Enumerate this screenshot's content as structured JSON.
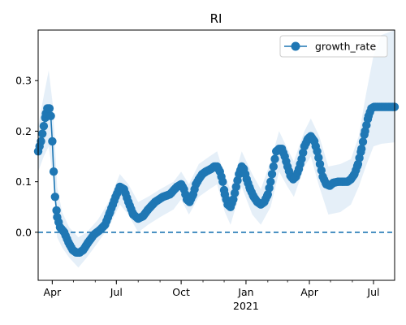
{
  "chart_data": {
    "type": "line",
    "title": "RI",
    "xlabel": "",
    "ylabel": "",
    "x_range": [
      "2020-03-12",
      "2021-07-31"
    ],
    "ylim": [
      -0.095,
      0.4
    ],
    "x_major_ticks": [
      {
        "date": "2020-04-01",
        "label": "Apr"
      },
      {
        "date": "2020-07-01",
        "label": "Jul"
      },
      {
        "date": "2020-10-01",
        "label": "Oct"
      },
      {
        "date": "2021-01-01",
        "label": "Jan"
      },
      {
        "date": "2021-04-01",
        "label": "Apr"
      },
      {
        "date": "2021-07-01",
        "label": "Jul"
      }
    ],
    "x_year_label": "2021",
    "y_ticks": [
      0.0,
      0.1,
      0.2,
      0.3
    ],
    "y_tick_labels": [
      "0.0",
      "0.1",
      "0.2",
      "0.3"
    ],
    "reference_line": {
      "y": 0.0,
      "style": "dashed"
    },
    "legend": {
      "position": "top-right",
      "entries": [
        "growth_rate"
      ]
    },
    "grid": false,
    "colors": {
      "line": "#1f77b4",
      "band": "#dce9f5",
      "axes": "#000000"
    },
    "series": [
      {
        "name": "growth_rate",
        "marker": "circle",
        "points": [
          [
            "2020-03-12",
            0.16
          ],
          [
            "2020-03-16",
            0.18
          ],
          [
            "2020-03-20",
            0.21
          ],
          [
            "2020-03-23",
            0.235
          ],
          [
            "2020-03-25",
            0.245
          ],
          [
            "2020-03-28",
            0.245
          ],
          [
            "2020-03-30",
            0.23
          ],
          [
            "2020-04-01",
            0.18
          ],
          [
            "2020-04-03",
            0.12
          ],
          [
            "2020-04-05",
            0.07
          ],
          [
            "2020-04-08",
            0.03
          ],
          [
            "2020-04-12",
            0.01
          ],
          [
            "2020-04-18",
            0.0
          ],
          [
            "2020-04-24",
            -0.02
          ],
          [
            "2020-04-30",
            -0.035
          ],
          [
            "2020-05-05",
            -0.04
          ],
          [
            "2020-05-10",
            -0.04
          ],
          [
            "2020-05-15",
            -0.035
          ],
          [
            "2020-05-22",
            -0.02
          ],
          [
            "2020-05-30",
            -0.005
          ],
          [
            "2020-06-08",
            0.005
          ],
          [
            "2020-06-15",
            0.015
          ],
          [
            "2020-06-22",
            0.04
          ],
          [
            "2020-06-30",
            0.07
          ],
          [
            "2020-07-06",
            0.09
          ],
          [
            "2020-07-12",
            0.085
          ],
          [
            "2020-07-18",
            0.06
          ],
          [
            "2020-07-25",
            0.035
          ],
          [
            "2020-08-01",
            0.027
          ],
          [
            "2020-08-08",
            0.032
          ],
          [
            "2020-08-15",
            0.045
          ],
          [
            "2020-08-25",
            0.06
          ],
          [
            "2020-09-05",
            0.07
          ],
          [
            "2020-09-15",
            0.075
          ],
          [
            "2020-09-25",
            0.09
          ],
          [
            "2020-10-01",
            0.095
          ],
          [
            "2020-10-05",
            0.085
          ],
          [
            "2020-10-09",
            0.065
          ],
          [
            "2020-10-13",
            0.06
          ],
          [
            "2020-10-18",
            0.075
          ],
          [
            "2020-10-22",
            0.095
          ],
          [
            "2020-10-26",
            0.105
          ],
          [
            "2020-10-31",
            0.115
          ],
          [
            "2020-11-05",
            0.12
          ],
          [
            "2020-11-12",
            0.125
          ],
          [
            "2020-11-17",
            0.13
          ],
          [
            "2020-11-21",
            0.13
          ],
          [
            "2020-11-25",
            0.12
          ],
          [
            "2020-11-29",
            0.1
          ],
          [
            "2020-12-02",
            0.075
          ],
          [
            "2020-12-06",
            0.055
          ],
          [
            "2020-12-10",
            0.05
          ],
          [
            "2020-12-14",
            0.065
          ],
          [
            "2020-12-18",
            0.09
          ],
          [
            "2020-12-22",
            0.115
          ],
          [
            "2020-12-26",
            0.13
          ],
          [
            "2020-12-29",
            0.125
          ],
          [
            "2021-01-02",
            0.105
          ],
          [
            "2021-01-07",
            0.085
          ],
          [
            "2021-01-12",
            0.07
          ],
          [
            "2021-01-17",
            0.06
          ],
          [
            "2021-01-22",
            0.055
          ],
          [
            "2021-01-27",
            0.06
          ],
          [
            "2021-02-01",
            0.075
          ],
          [
            "2021-02-05",
            0.1
          ],
          [
            "2021-02-09",
            0.13
          ],
          [
            "2021-02-13",
            0.16
          ],
          [
            "2021-02-17",
            0.165
          ],
          [
            "2021-02-21",
            0.165
          ],
          [
            "2021-02-25",
            0.15
          ],
          [
            "2021-03-01",
            0.13
          ],
          [
            "2021-03-05",
            0.112
          ],
          [
            "2021-03-09",
            0.105
          ],
          [
            "2021-03-13",
            0.11
          ],
          [
            "2021-03-17",
            0.125
          ],
          [
            "2021-03-21",
            0.145
          ],
          [
            "2021-03-25",
            0.17
          ],
          [
            "2021-03-30",
            0.185
          ],
          [
            "2021-04-03",
            0.19
          ],
          [
            "2021-04-08",
            0.18
          ],
          [
            "2021-04-12",
            0.16
          ],
          [
            "2021-04-16",
            0.135
          ],
          [
            "2021-04-20",
            0.11
          ],
          [
            "2021-04-25",
            0.095
          ],
          [
            "2021-04-30",
            0.092
          ],
          [
            "2021-05-05",
            0.098
          ],
          [
            "2021-05-12",
            0.1
          ],
          [
            "2021-05-19",
            0.1
          ],
          [
            "2021-05-25",
            0.1
          ],
          [
            "2021-05-30",
            0.105
          ],
          [
            "2021-06-04",
            0.115
          ],
          [
            "2021-06-09",
            0.135
          ],
          [
            "2021-06-14",
            0.165
          ],
          [
            "2021-06-19",
            0.2
          ],
          [
            "2021-06-24",
            0.23
          ],
          [
            "2021-06-28",
            0.245
          ],
          [
            "2021-07-02",
            0.248
          ],
          [
            "2021-07-10",
            0.248
          ],
          [
            "2021-07-20",
            0.248
          ],
          [
            "2021-07-31",
            0.248
          ]
        ],
        "band_upper": [
          [
            "2020-03-12",
            0.21
          ],
          [
            "2020-03-20",
            0.27
          ],
          [
            "2020-03-27",
            0.32
          ],
          [
            "2020-04-02",
            0.25
          ],
          [
            "2020-04-08",
            0.09
          ],
          [
            "2020-04-15",
            0.04
          ],
          [
            "2020-04-25",
            0.01
          ],
          [
            "2020-05-08",
            -0.01
          ],
          [
            "2020-05-20",
            0.0
          ],
          [
            "2020-06-05",
            0.025
          ],
          [
            "2020-06-20",
            0.06
          ],
          [
            "2020-07-06",
            0.115
          ],
          [
            "2020-07-18",
            0.095
          ],
          [
            "2020-08-01",
            0.06
          ],
          [
            "2020-08-15",
            0.07
          ],
          [
            "2020-09-01",
            0.085
          ],
          [
            "2020-09-20",
            0.1
          ],
          [
            "2020-10-01",
            0.12
          ],
          [
            "2020-10-12",
            0.095
          ],
          [
            "2020-10-26",
            0.135
          ],
          [
            "2020-11-10",
            0.15
          ],
          [
            "2020-11-21",
            0.16
          ],
          [
            "2020-12-02",
            0.11
          ],
          [
            "2020-12-10",
            0.085
          ],
          [
            "2020-12-26",
            0.16
          ],
          [
            "2021-01-10",
            0.115
          ],
          [
            "2021-01-22",
            0.085
          ],
          [
            "2021-02-05",
            0.14
          ],
          [
            "2021-02-17",
            0.2
          ],
          [
            "2021-03-01",
            0.165
          ],
          [
            "2021-03-10",
            0.14
          ],
          [
            "2021-03-25",
            0.2
          ],
          [
            "2021-04-03",
            0.225
          ],
          [
            "2021-04-15",
            0.19
          ],
          [
            "2021-04-28",
            0.13
          ],
          [
            "2021-05-15",
            0.135
          ],
          [
            "2021-05-30",
            0.145
          ],
          [
            "2021-06-10",
            0.19
          ],
          [
            "2021-06-20",
            0.27
          ],
          [
            "2021-07-01",
            0.35
          ],
          [
            "2021-07-12",
            0.39
          ],
          [
            "2021-07-31",
            0.4
          ]
        ],
        "band_lower": [
          [
            "2020-03-12",
            0.12
          ],
          [
            "2020-03-20",
            0.15
          ],
          [
            "2020-03-27",
            0.17
          ],
          [
            "2020-04-02",
            0.11
          ],
          [
            "2020-04-08",
            -0.01
          ],
          [
            "2020-04-15",
            -0.03
          ],
          [
            "2020-04-25",
            -0.05
          ],
          [
            "2020-05-08",
            -0.07
          ],
          [
            "2020-05-20",
            -0.05
          ],
          [
            "2020-06-05",
            -0.02
          ],
          [
            "2020-06-20",
            0.01
          ],
          [
            "2020-07-06",
            0.055
          ],
          [
            "2020-07-18",
            0.035
          ],
          [
            "2020-08-01",
            0.0
          ],
          [
            "2020-08-15",
            0.015
          ],
          [
            "2020-09-01",
            0.03
          ],
          [
            "2020-09-20",
            0.045
          ],
          [
            "2020-10-01",
            0.065
          ],
          [
            "2020-10-12",
            0.035
          ],
          [
            "2020-10-26",
            0.07
          ],
          [
            "2020-11-10",
            0.085
          ],
          [
            "2020-11-21",
            0.095
          ],
          [
            "2020-12-02",
            0.04
          ],
          [
            "2020-12-10",
            0.015
          ],
          [
            "2020-12-26",
            0.09
          ],
          [
            "2021-01-10",
            0.035
          ],
          [
            "2021-01-22",
            0.015
          ],
          [
            "2021-02-05",
            0.05
          ],
          [
            "2021-02-17",
            0.12
          ],
          [
            "2021-03-01",
            0.09
          ],
          [
            "2021-03-10",
            0.07
          ],
          [
            "2021-03-25",
            0.13
          ],
          [
            "2021-04-03",
            0.15
          ],
          [
            "2021-04-15",
            0.09
          ],
          [
            "2021-04-28",
            0.035
          ],
          [
            "2021-05-15",
            0.04
          ],
          [
            "2021-05-30",
            0.055
          ],
          [
            "2021-06-10",
            0.09
          ],
          [
            "2021-06-20",
            0.13
          ],
          [
            "2021-07-01",
            0.17
          ],
          [
            "2021-07-12",
            0.175
          ],
          [
            "2021-07-31",
            0.178
          ]
        ]
      }
    ]
  }
}
